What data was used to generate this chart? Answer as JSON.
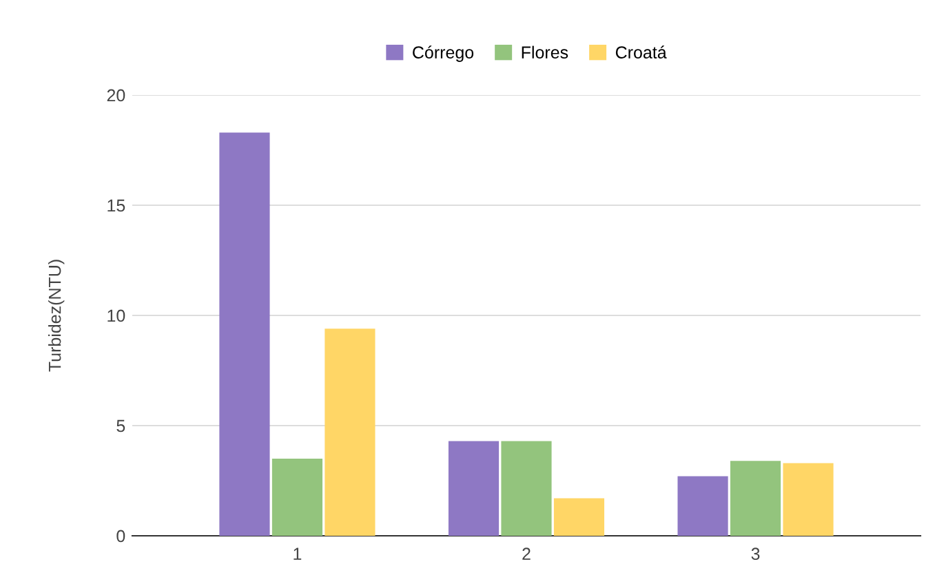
{
  "chart_data": {
    "type": "bar",
    "ylabel": "Turbidez(NTU)",
    "categories": [
      "1",
      "2",
      "3"
    ],
    "series": [
      {
        "name": "Córrego",
        "color": "#8e78c4",
        "values": [
          18.3,
          4.3,
          2.7
        ]
      },
      {
        "name": "Flores",
        "color": "#93c47d",
        "values": [
          3.5,
          4.3,
          3.4
        ]
      },
      {
        "name": "Croatá",
        "color": "#ffd666",
        "values": [
          9.4,
          1.7,
          3.3
        ]
      }
    ],
    "ylim": [
      0,
      20
    ],
    "yticks": [
      0,
      5,
      10,
      15,
      20
    ],
    "grid": "y",
    "legend": "top"
  }
}
